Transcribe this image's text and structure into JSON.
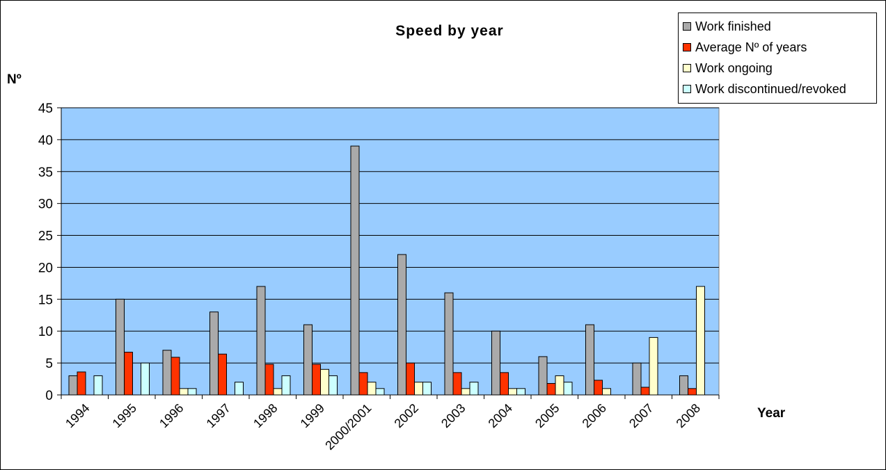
{
  "chart_data": {
    "type": "bar",
    "title": "Speed by year",
    "xlabel": "Year",
    "ylabel": "Nº",
    "ylim": [
      0,
      45
    ],
    "yticks": [
      0,
      5,
      10,
      15,
      20,
      25,
      30,
      35,
      40,
      45
    ],
    "grid": true,
    "legend_position": "top-right",
    "plot_background": "#99ccff",
    "categories": [
      "1994",
      "1995",
      "1996",
      "1997",
      "1998",
      "1999",
      "2000/2001",
      "2002",
      "2003",
      "2004",
      "2005",
      "2006",
      "2007",
      "2008"
    ],
    "series": [
      {
        "name": "Work finished",
        "color": "#aaaaaa",
        "values": [
          3,
          15,
          7,
          13,
          17,
          11,
          39,
          22,
          16,
          10,
          6,
          11,
          5,
          3
        ]
      },
      {
        "name": "Average Nº of years",
        "color": "#ff3300",
        "values": [
          3.6,
          6.7,
          5.9,
          6.4,
          4.8,
          4.8,
          3.5,
          5,
          3.5,
          3.5,
          1.8,
          2.3,
          1.2,
          1
        ]
      },
      {
        "name": "Work ongoing",
        "color": "#ffffcc",
        "values": [
          0,
          0,
          1,
          0,
          1,
          4,
          2,
          2,
          1,
          1,
          3,
          1,
          9,
          17
        ]
      },
      {
        "name": "Work discontinued/revoked",
        "color": "#ccffff",
        "values": [
          3,
          5,
          1,
          2,
          3,
          3,
          1,
          2,
          2,
          1,
          2,
          0,
          0,
          0
        ]
      }
    ]
  }
}
